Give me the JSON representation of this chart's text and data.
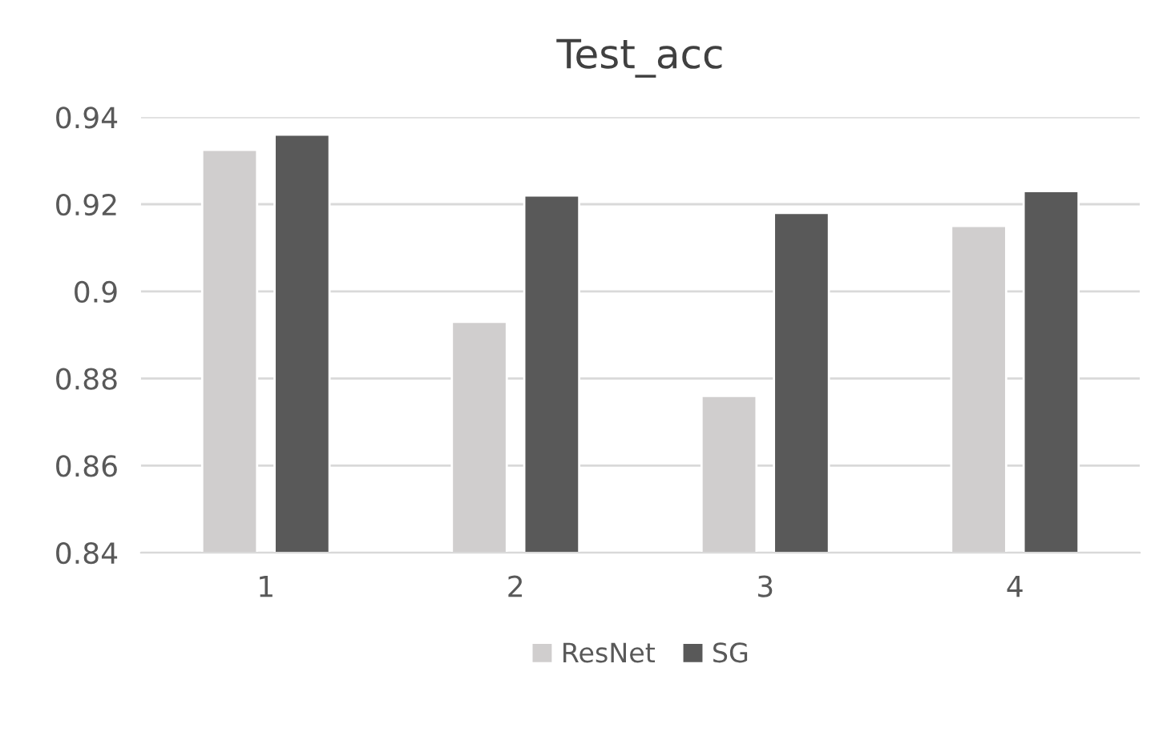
{
  "chart_data": {
    "type": "bar",
    "title": "Test_acc",
    "categories": [
      "1",
      "2",
      "3",
      "4"
    ],
    "series": [
      {
        "name": "ResNet",
        "color": "#d0cece",
        "values": [
          0.9325,
          0.893,
          0.876,
          0.915
        ]
      },
      {
        "name": "SG",
        "color": "#595959",
        "values": [
          0.936,
          0.922,
          0.918,
          0.923
        ]
      }
    ],
    "ylim": [
      0.84,
      0.94
    ],
    "yticks": [
      0.84,
      0.86,
      0.88,
      0.9,
      0.92,
      0.94
    ],
    "grid": "y",
    "legend": "bottom"
  }
}
